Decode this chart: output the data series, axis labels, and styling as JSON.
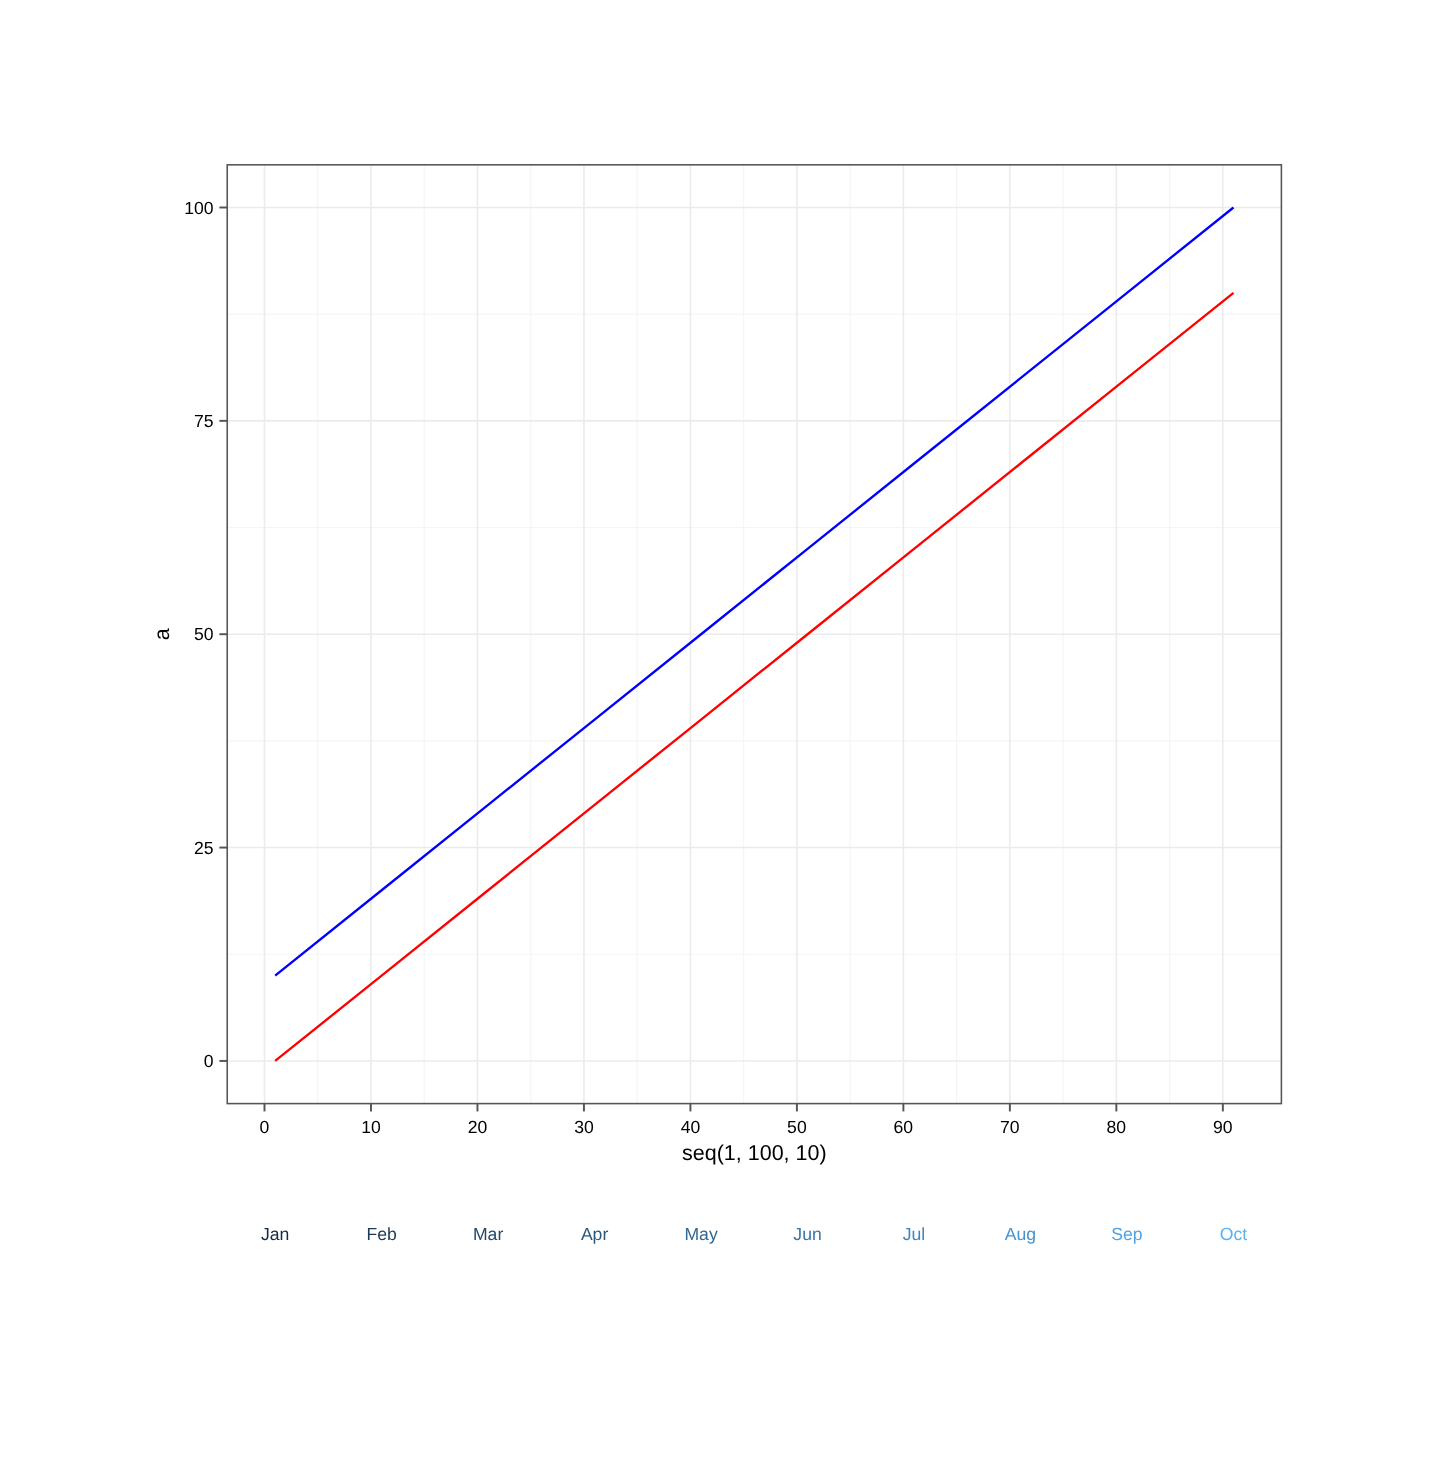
{
  "chart_data": {
    "type": "line",
    "x": [
      1,
      11,
      21,
      31,
      41,
      51,
      61,
      71,
      81,
      91
    ],
    "series": [
      {
        "color": "#0000ff",
        "values": [
          10,
          20,
          30,
          40,
          50,
          60,
          70,
          80,
          90,
          100
        ]
      },
      {
        "color": "#ff0000",
        "values": [
          0,
          10,
          20,
          30,
          40,
          50,
          60,
          70,
          80,
          90
        ]
      }
    ],
    "xlabel": "seq(1, 100, 10)",
    "ylabel": "a",
    "xlim": [
      -3.5,
      95.5
    ],
    "xticks": [
      0,
      10,
      20,
      30,
      40,
      50,
      60,
      70,
      80,
      90
    ],
    "ylim": [
      -5,
      105
    ],
    "yticks": [
      0,
      25,
      50,
      75,
      100
    ],
    "annotations": [
      "Jan",
      "Feb",
      "Mar",
      "Apr",
      "May",
      "Jun",
      "Jul",
      "Aug",
      "Sep",
      "Oct"
    ],
    "grid": true,
    "marker": "none",
    "line_style": "solid"
  }
}
